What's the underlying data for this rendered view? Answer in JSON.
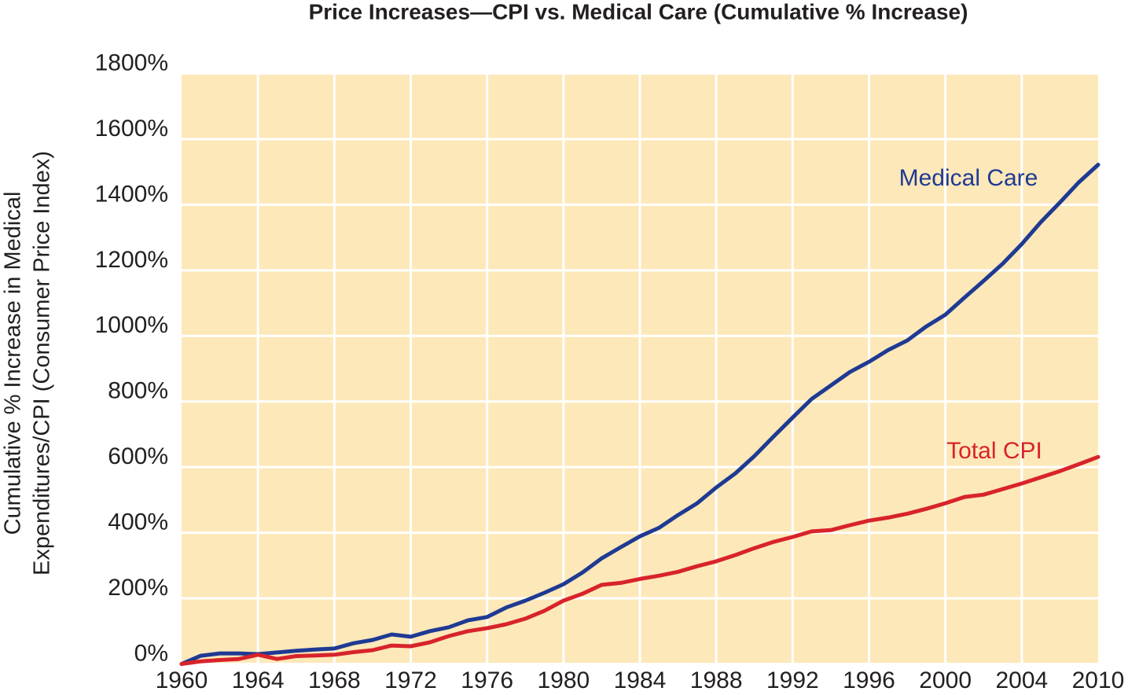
{
  "chart_data": {
    "type": "line",
    "title": "Price Increases—CPI vs. Medical Care (Cumulative % Increase)",
    "y_label": [
      "Cumulative % Increase in Medical",
      "Expenditures/CPI (Consumer Price Index)"
    ],
    "categories": [
      "1960",
      null,
      null,
      null,
      "1964",
      null,
      null,
      null,
      "1968",
      null,
      null,
      null,
      "1972",
      null,
      null,
      null,
      "1976",
      null,
      null,
      null,
      "1980",
      null,
      null,
      null,
      "1984",
      null,
      null,
      null,
      "1988",
      null,
      null,
      null,
      "1992",
      null,
      null,
      null,
      "1996",
      null,
      null,
      null,
      "2000",
      null,
      null,
      null,
      "2004",
      null,
      null,
      null,
      "2010"
    ],
    "series": [
      {
        "name": "Medical Care",
        "color": "#1f3a93",
        "values": [
          0,
          25,
          32,
          32,
          30,
          35,
          40,
          44,
          47,
          63,
          73,
          90,
          83,
          100,
          112,
          133,
          143,
          172,
          193,
          217,
          243,
          279,
          322,
          356,
          389,
          415,
          454,
          490,
          538,
          581,
          634,
          693,
          751,
          808,
          849,
          890,
          921,
          957,
          986,
          1029,
          1065,
          1117,
          1168,
          1220,
          1280,
          1347,
          1407,
          1469,
          1522
        ]
      },
      {
        "name": "Total CPI",
        "color": "#d8232a",
        "values": [
          0,
          8,
          12,
          15,
          28,
          15,
          24,
          26,
          28,
          36,
          42,
          56,
          54,
          66,
          85,
          100,
          109,
          121,
          138,
          162,
          193,
          214,
          241,
          247,
          259,
          269,
          281,
          298,
          313,
          332,
          353,
          372,
          387,
          404,
          408,
          423,
          437,
          446,
          458,
          473,
          490,
          509,
          516,
          533,
          550,
          569,
          588,
          609,
          631
        ]
      }
    ],
    "ylim": [
      0,
      1800
    ],
    "yticks": [
      {
        "value": 0,
        "label": "0%"
      },
      {
        "value": 200,
        "label": "200%"
      },
      {
        "value": 400,
        "label": "400%"
      },
      {
        "value": 600,
        "label": "600%"
      },
      {
        "value": 800,
        "label": "800%"
      },
      {
        "value": 1000,
        "label": "1000%"
      },
      {
        "value": 1200,
        "label": "1200%"
      },
      {
        "value": 1400,
        "label": "1400%"
      },
      {
        "value": 1600,
        "label": "1600%"
      },
      {
        "value": 1800,
        "label": "1800%"
      }
    ],
    "grid": true,
    "background": "#fde8b9"
  }
}
